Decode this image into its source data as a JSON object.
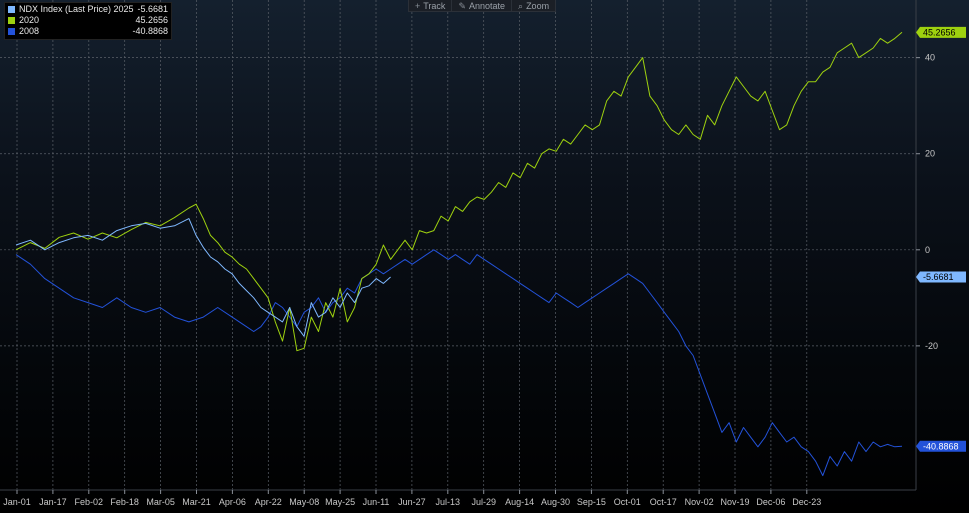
{
  "legend": {
    "items": [
      {
        "label": "NDX Index (Last Price) 2025",
        "value": "-5.6681",
        "color": "#7fb8ff"
      },
      {
        "label": "2020",
        "value": "45.2656",
        "color": "#9ed10f"
      },
      {
        "label": "2008",
        "value": "-40.8868",
        "color": "#2352d9"
      }
    ]
  },
  "toolbar": {
    "track": "Track",
    "annotate": "Annotate",
    "zoom": "Zoom",
    "track_icon": "plus-icon",
    "annotate_icon": "pencil-icon",
    "zoom_icon": "magnifier-icon"
  },
  "chart_data": {
    "type": "line",
    "grid": true,
    "legend_position": "top-left",
    "ylim": [
      -50,
      52
    ],
    "y_ticks": [
      40,
      20,
      0,
      -20
    ],
    "x_ticks": [
      "Jan-01",
      "Jan-17",
      "Feb-02",
      "Feb-18",
      "Mar-05",
      "Mar-21",
      "Apr-06",
      "Apr-22",
      "May-08",
      "May-25",
      "Jun-11",
      "Jun-27",
      "Jul-13",
      "Jul-29",
      "Aug-14",
      "Aug-30",
      "Sep-15",
      "Oct-01",
      "Oct-17",
      "Nov-02",
      "Nov-19",
      "Dec-06",
      "Dec-23"
    ],
    "end_tags": [
      {
        "series": "2020",
        "value": "45.2656",
        "y": 45.27,
        "bg": "#9ed10f",
        "fg": "#000000"
      },
      {
        "series": "NDX Index (Last Price) 2025",
        "value": "-5.6681",
        "y": -5.67,
        "bg": "#7fb8ff",
        "fg": "#000000"
      },
      {
        "series": "2008",
        "value": "-40.8868",
        "y": -40.89,
        "bg": "#2352d9",
        "fg": "#ffffff"
      }
    ],
    "series": [
      {
        "name": "2020",
        "color": "#9ed10f",
        "points": [
          [
            0,
            0
          ],
          [
            4,
            1.5
          ],
          [
            8,
            0.3
          ],
          [
            12,
            2.6
          ],
          [
            16,
            3.5
          ],
          [
            20,
            2.2
          ],
          [
            24,
            3.5
          ],
          [
            28,
            2.5
          ],
          [
            32,
            4.2
          ],
          [
            36,
            5.7
          ],
          [
            40,
            5
          ],
          [
            44,
            6.7
          ],
          [
            48,
            8.7
          ],
          [
            50,
            9.5
          ],
          [
            52,
            6.5
          ],
          [
            54,
            3
          ],
          [
            56,
            1.5
          ],
          [
            58,
            -0.5
          ],
          [
            60,
            -1.5
          ],
          [
            62,
            -3
          ],
          [
            64,
            -4
          ],
          [
            66,
            -6
          ],
          [
            68,
            -8
          ],
          [
            70,
            -10
          ],
          [
            72,
            -15
          ],
          [
            74,
            -19
          ],
          [
            76,
            -12
          ],
          [
            78,
            -21
          ],
          [
            80,
            -20.5
          ],
          [
            82,
            -14
          ],
          [
            84,
            -17
          ],
          [
            86,
            -11
          ],
          [
            88,
            -14
          ],
          [
            90,
            -8
          ],
          [
            92,
            -15
          ],
          [
            94,
            -12
          ],
          [
            96,
            -6
          ],
          [
            98,
            -5
          ],
          [
            100,
            -3
          ],
          [
            102,
            1
          ],
          [
            104,
            -2
          ],
          [
            106,
            0
          ],
          [
            108,
            2
          ],
          [
            110,
            0
          ],
          [
            112,
            4
          ],
          [
            114,
            3.5
          ],
          [
            116,
            4
          ],
          [
            118,
            7
          ],
          [
            120,
            6
          ],
          [
            122,
            9
          ],
          [
            124,
            8
          ],
          [
            126,
            10
          ],
          [
            128,
            11
          ],
          [
            130,
            10.5
          ],
          [
            132,
            12
          ],
          [
            134,
            14
          ],
          [
            136,
            13
          ],
          [
            138,
            16
          ],
          [
            140,
            15
          ],
          [
            142,
            18
          ],
          [
            144,
            17
          ],
          [
            146,
            20
          ],
          [
            148,
            21
          ],
          [
            150,
            20.5
          ],
          [
            152,
            23
          ],
          [
            154,
            22
          ],
          [
            156,
            24
          ],
          [
            158,
            26
          ],
          [
            160,
            25
          ],
          [
            162,
            26
          ],
          [
            164,
            31
          ],
          [
            166,
            33
          ],
          [
            168,
            32
          ],
          [
            170,
            36
          ],
          [
            172,
            38
          ],
          [
            174,
            40
          ],
          [
            176,
            32
          ],
          [
            178,
            30
          ],
          [
            180,
            27
          ],
          [
            182,
            25
          ],
          [
            184,
            24
          ],
          [
            186,
            26
          ],
          [
            188,
            24
          ],
          [
            190,
            23
          ],
          [
            192,
            28
          ],
          [
            194,
            26
          ],
          [
            196,
            30
          ],
          [
            198,
            33
          ],
          [
            200,
            36
          ],
          [
            202,
            34
          ],
          [
            204,
            32
          ],
          [
            206,
            31
          ],
          [
            208,
            33
          ],
          [
            210,
            29
          ],
          [
            212,
            25
          ],
          [
            214,
            26
          ],
          [
            216,
            30
          ],
          [
            218,
            33
          ],
          [
            220,
            35
          ],
          [
            222,
            35
          ],
          [
            224,
            37
          ],
          [
            226,
            38
          ],
          [
            228,
            41
          ],
          [
            230,
            42
          ],
          [
            232,
            43
          ],
          [
            234,
            40
          ],
          [
            236,
            41
          ],
          [
            238,
            42
          ],
          [
            240,
            44
          ],
          [
            242,
            43
          ],
          [
            244,
            44
          ],
          [
            246,
            45.27
          ]
        ]
      },
      {
        "name": "NDX Index (Last Price) 2025",
        "color": "#7fb8ff",
        "points": [
          [
            0,
            1
          ],
          [
            4,
            2
          ],
          [
            8,
            0
          ],
          [
            12,
            1.5
          ],
          [
            16,
            2.5
          ],
          [
            20,
            3
          ],
          [
            24,
            2
          ],
          [
            28,
            4
          ],
          [
            32,
            5
          ],
          [
            36,
            5.5
          ],
          [
            40,
            4.5
          ],
          [
            44,
            5
          ],
          [
            48,
            6.5
          ],
          [
            50,
            3
          ],
          [
            52,
            0.5
          ],
          [
            54,
            -1.5
          ],
          [
            56,
            -2.5
          ],
          [
            58,
            -4
          ],
          [
            60,
            -5
          ],
          [
            62,
            -7
          ],
          [
            64,
            -8.5
          ],
          [
            66,
            -10
          ],
          [
            68,
            -12
          ],
          [
            70,
            -13
          ],
          [
            72,
            -14
          ],
          [
            74,
            -15
          ],
          [
            76,
            -12
          ],
          [
            78,
            -16
          ],
          [
            80,
            -18
          ],
          [
            82,
            -11
          ],
          [
            84,
            -14
          ],
          [
            86,
            -13
          ],
          [
            88,
            -10
          ],
          [
            90,
            -12
          ],
          [
            92,
            -9
          ],
          [
            94,
            -11
          ],
          [
            96,
            -8
          ],
          [
            98,
            -7.5
          ],
          [
            100,
            -6
          ],
          [
            102,
            -7
          ],
          [
            104,
            -5.67
          ]
        ]
      },
      {
        "name": "2008",
        "color": "#2352d9",
        "points": [
          [
            0,
            -1
          ],
          [
            4,
            -3
          ],
          [
            8,
            -6
          ],
          [
            12,
            -8
          ],
          [
            16,
            -10
          ],
          [
            20,
            -11
          ],
          [
            24,
            -12
          ],
          [
            28,
            -10
          ],
          [
            32,
            -12
          ],
          [
            36,
            -13
          ],
          [
            40,
            -12
          ],
          [
            44,
            -14
          ],
          [
            48,
            -15
          ],
          [
            52,
            -14
          ],
          [
            56,
            -12
          ],
          [
            60,
            -14
          ],
          [
            64,
            -16
          ],
          [
            66,
            -17
          ],
          [
            68,
            -16
          ],
          [
            70,
            -14
          ],
          [
            72,
            -11
          ],
          [
            74,
            -12
          ],
          [
            76,
            -14
          ],
          [
            78,
            -16
          ],
          [
            80,
            -13
          ],
          [
            82,
            -12
          ],
          [
            84,
            -10
          ],
          [
            86,
            -13
          ],
          [
            88,
            -11
          ],
          [
            90,
            -10
          ],
          [
            92,
            -8
          ],
          [
            94,
            -9
          ],
          [
            96,
            -6
          ],
          [
            98,
            -5
          ],
          [
            100,
            -4
          ],
          [
            102,
            -5
          ],
          [
            104,
            -4
          ],
          [
            106,
            -3
          ],
          [
            108,
            -2
          ],
          [
            110,
            -3
          ],
          [
            112,
            -2
          ],
          [
            114,
            -1
          ],
          [
            116,
            0
          ],
          [
            118,
            -1
          ],
          [
            120,
            -2
          ],
          [
            122,
            -1
          ],
          [
            124,
            -2
          ],
          [
            126,
            -3
          ],
          [
            128,
            -1
          ],
          [
            130,
            -2
          ],
          [
            132,
            -3
          ],
          [
            134,
            -4
          ],
          [
            136,
            -5
          ],
          [
            138,
            -6
          ],
          [
            140,
            -7
          ],
          [
            142,
            -8
          ],
          [
            144,
            -9
          ],
          [
            146,
            -10
          ],
          [
            148,
            -11
          ],
          [
            150,
            -9
          ],
          [
            152,
            -10
          ],
          [
            154,
            -11
          ],
          [
            156,
            -12
          ],
          [
            158,
            -11
          ],
          [
            160,
            -10
          ],
          [
            162,
            -9
          ],
          [
            164,
            -8
          ],
          [
            166,
            -7
          ],
          [
            168,
            -6
          ],
          [
            170,
            -5
          ],
          [
            172,
            -6
          ],
          [
            174,
            -7
          ],
          [
            176,
            -9
          ],
          [
            178,
            -11
          ],
          [
            180,
            -13
          ],
          [
            182,
            -15
          ],
          [
            184,
            -17
          ],
          [
            186,
            -20
          ],
          [
            188,
            -22
          ],
          [
            190,
            -26
          ],
          [
            192,
            -30
          ],
          [
            194,
            -34
          ],
          [
            196,
            -38
          ],
          [
            198,
            -36
          ],
          [
            200,
            -40
          ],
          [
            202,
            -37
          ],
          [
            204,
            -39
          ],
          [
            206,
            -41
          ],
          [
            208,
            -39
          ],
          [
            210,
            -36
          ],
          [
            212,
            -38
          ],
          [
            214,
            -40
          ],
          [
            216,
            -39
          ],
          [
            218,
            -41
          ],
          [
            220,
            -42
          ],
          [
            222,
            -44
          ],
          [
            224,
            -47
          ],
          [
            226,
            -43
          ],
          [
            228,
            -45
          ],
          [
            230,
            -42
          ],
          [
            232,
            -44
          ],
          [
            234,
            -40
          ],
          [
            236,
            -42
          ],
          [
            238,
            -40
          ],
          [
            240,
            -41
          ],
          [
            242,
            -40.5
          ],
          [
            244,
            -41
          ],
          [
            246,
            -40.89
          ]
        ]
      }
    ]
  }
}
